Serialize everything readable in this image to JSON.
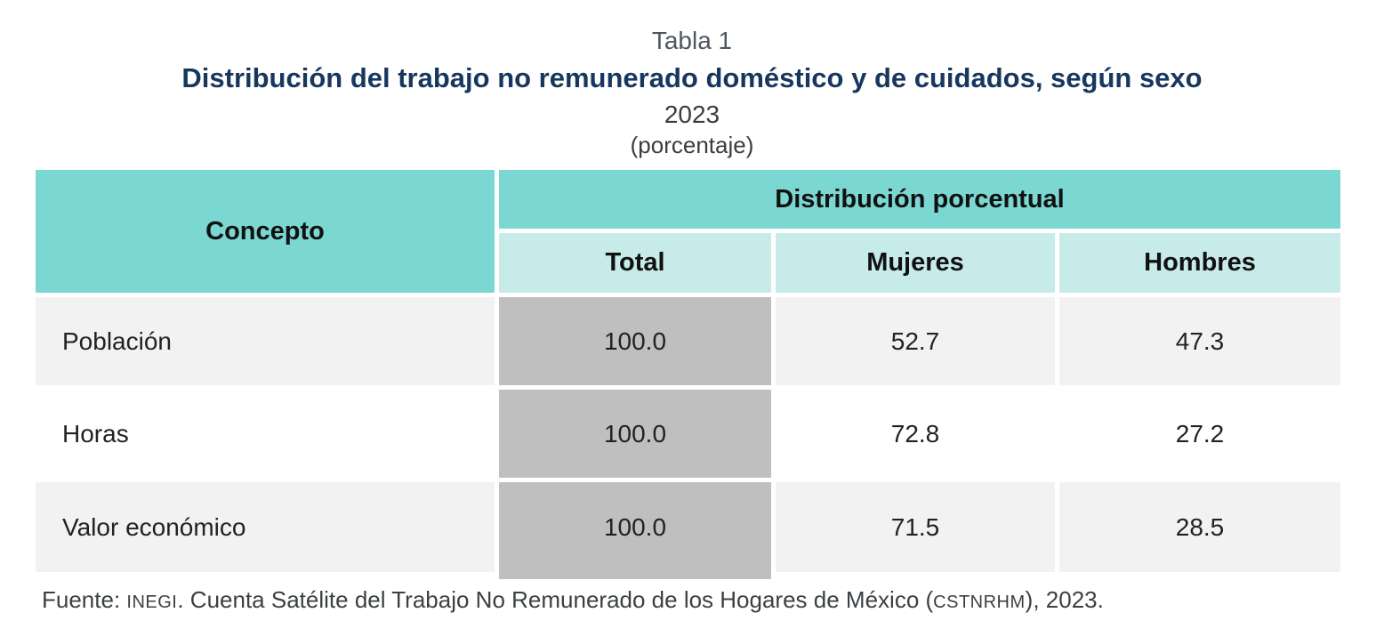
{
  "header": {
    "table_label": "Tabla 1",
    "title": "Distribución del trabajo no remunerado doméstico y de cuidados, según sexo",
    "year": "2023",
    "unit": "(porcentaje)"
  },
  "table": {
    "concept_header": "Concepto",
    "group_header": "Distribución porcentual",
    "columns": [
      "Total",
      "Mujeres",
      "Hombres"
    ],
    "rows": [
      {
        "concept": "Población",
        "total": "100.0",
        "mujeres": "52.7",
        "hombres": "47.3"
      },
      {
        "concept": "Horas",
        "total": "100.0",
        "mujeres": "72.8",
        "hombres": "27.2"
      },
      {
        "concept": "Valor económico",
        "total": "100.0",
        "mujeres": "71.5",
        "hombres": "28.5"
      }
    ]
  },
  "footer": {
    "prefix": "Fuente: ",
    "inegi": "INEGI",
    "mid": ". Cuenta Satélite del Trabajo No Remunerado de los Hogares de México (",
    "acronym": "CSTNRHM",
    "suffix": "), 2023."
  },
  "colors": {
    "teal": "#7BD7D1",
    "light_teal": "#C6EBE8",
    "total_gray": "#BFBFBF",
    "row_light_gray": "#F2F2F2",
    "title_navy": "#17375E",
    "label_gray": "#4E565E",
    "subtitle_gray": "#3A3D40",
    "footer_gray": "#3C4043"
  },
  "chart_data": {
    "type": "table",
    "title": "Tabla 1 — Distribución del trabajo no remunerado doméstico y de cuidados, según sexo, 2023 (porcentaje)",
    "group_header": "Distribución porcentual",
    "columns": [
      "Concepto",
      "Total",
      "Mujeres",
      "Hombres"
    ],
    "rows": [
      [
        "Población",
        100.0,
        52.7,
        47.3
      ],
      [
        "Horas",
        100.0,
        72.8,
        27.2
      ],
      [
        "Valor económico",
        100.0,
        71.5,
        28.5
      ]
    ],
    "source": "Fuente: INEGI. Cuenta Satélite del Trabajo No Remunerado de los Hogares de México (CSTNRHM), 2023."
  }
}
